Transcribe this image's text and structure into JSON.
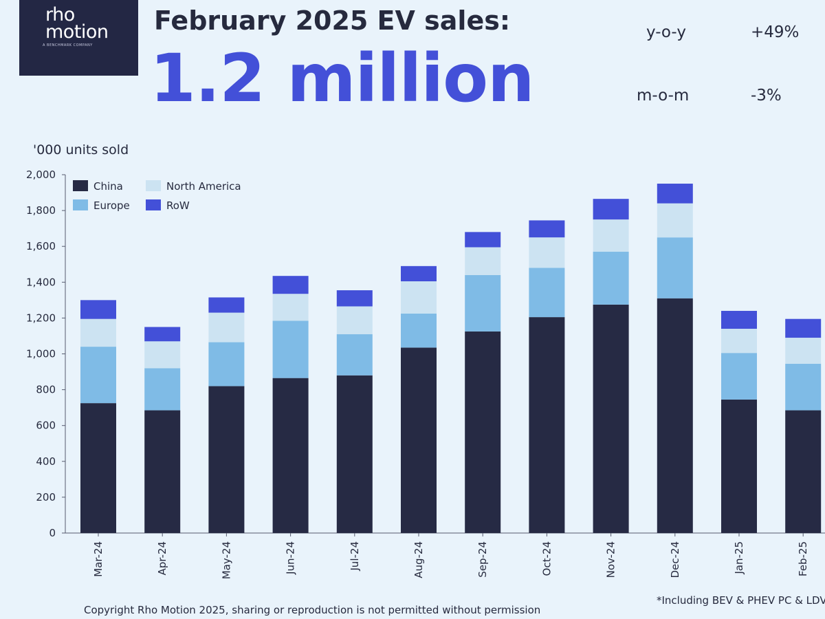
{
  "header": {
    "logo_line1": "rho",
    "logo_line2": "motion",
    "logo_sub": "A BENCHMARK COMPANY",
    "title": "February 2025 EV sales:",
    "headline": "1.2 million",
    "yoy_label": "y-o-y",
    "yoy_value": "+49%",
    "mom_label": "m-o-m",
    "mom_value": "-3%"
  },
  "colors": {
    "China": "#262a44",
    "Europe": "#7fbbe6",
    "North America": "#cce3f2",
    "RoW": "#4350d8",
    "headline": "#4350d8"
  },
  "chart_data": {
    "type": "bar",
    "stacked": true,
    "title": "",
    "xlabel": "",
    "ylabel": "'000 units sold",
    "ylim": [
      0,
      2000
    ],
    "yticks": [
      0,
      200,
      400,
      600,
      800,
      1000,
      1200,
      1400,
      1600,
      1800,
      2000
    ],
    "ytick_labels": [
      "0",
      "200",
      "400",
      "600",
      "800",
      "1,000",
      "1,200",
      "1,400",
      "1,600",
      "1,800",
      "2,000"
    ],
    "legend_position": "top-left",
    "categories": [
      "Mar-24",
      "Apr-24",
      "May-24",
      "Jun-24",
      "Jul-24",
      "Aug-24",
      "Sep-24",
      "Oct-24",
      "Nov-24",
      "Dec-24",
      "Jan-25",
      "Feb-25"
    ],
    "series": [
      {
        "name": "China",
        "values": [
          725,
          685,
          820,
          865,
          880,
          1035,
          1125,
          1205,
          1275,
          1310,
          745,
          685
        ]
      },
      {
        "name": "Europe",
        "values": [
          315,
          235,
          245,
          320,
          230,
          190,
          315,
          275,
          295,
          340,
          260,
          260
        ]
      },
      {
        "name": "North America",
        "values": [
          155,
          150,
          165,
          150,
          155,
          180,
          155,
          170,
          180,
          190,
          135,
          145
        ]
      },
      {
        "name": "RoW",
        "values": [
          105,
          80,
          85,
          100,
          90,
          85,
          85,
          95,
          115,
          110,
          100,
          105
        ]
      }
    ]
  },
  "footnote": "*Including BEV & PHEV PC & LDV",
  "copyright": "Copyright Rho Motion 2025, sharing or reproduction is not permitted without permission"
}
